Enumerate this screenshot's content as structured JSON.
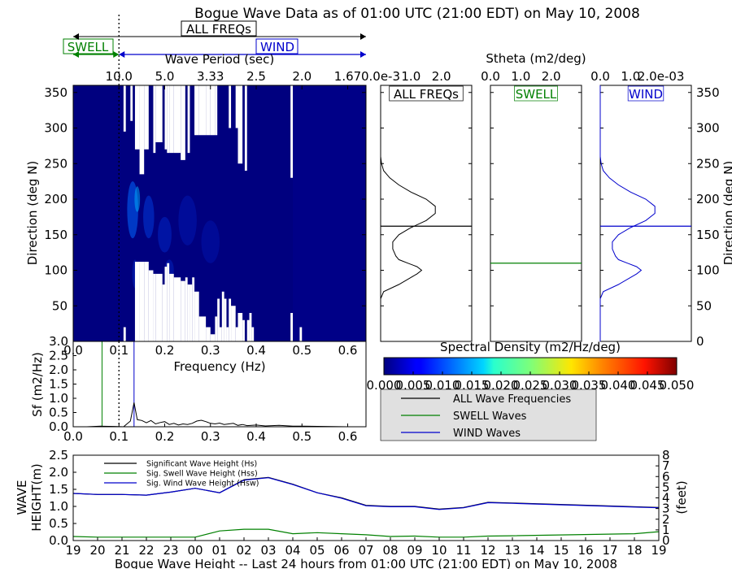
{
  "title": "Bogue Wave Data as of 01:00 UTC (21:00 EDT) on May 10, 2008",
  "band_labels": {
    "all": "ALL FREQs",
    "swell": "SWELL",
    "wind": "WIND"
  },
  "colors": {
    "swell": "#008000",
    "wind": "#0000cc",
    "all": "#000000",
    "heat_base": "#00007f",
    "panel_legend_bg": "#e0e0e0"
  },
  "chart_data": [
    {
      "id": "directional-spectrum",
      "type": "heatmap",
      "top_axis_label": "Wave Period (sec)",
      "top_ticks": [
        {
          "f": 0.1,
          "label": "10.0"
        },
        {
          "f": 0.2,
          "label": "5.0"
        },
        {
          "f": 0.3,
          "label": "3.33"
        },
        {
          "f": 0.4,
          "label": "2.5"
        },
        {
          "f": 0.5,
          "label": "2.0"
        },
        {
          "f": 0.6,
          "label": "1.67"
        }
      ],
      "ylabel": "Direction (deg N)",
      "xlim": [
        0.0,
        0.64
      ],
      "ylim": [
        0,
        360
      ],
      "yticks": [
        50,
        100,
        150,
        200,
        250,
        300,
        350
      ],
      "swell_wind_separation_hz": 0.1,
      "white_gaps": [
        {
          "x": [
            0.11,
            0.115
          ],
          "y": [
            0,
            20
          ]
        },
        {
          "x": [
            0.11,
            0.115
          ],
          "y": [
            295,
            360
          ]
        },
        {
          "x": [
            0.125,
            0.13
          ],
          "y": [
            310,
            360
          ]
        },
        {
          "x": [
            0.135,
            0.145
          ],
          "y": [
            270,
            360
          ]
        },
        {
          "x": [
            0.135,
            0.145
          ],
          "y": [
            0,
            112
          ]
        },
        {
          "x": [
            0.145,
            0.155
          ],
          "y": [
            235,
            360
          ]
        },
        {
          "x": [
            0.145,
            0.155
          ],
          "y": [
            0,
            112
          ]
        },
        {
          "x": [
            0.155,
            0.165
          ],
          "y": [
            270,
            360
          ]
        },
        {
          "x": [
            0.155,
            0.165
          ],
          "y": [
            0,
            112
          ]
        },
        {
          "x": [
            0.165,
            0.175
          ],
          "y": [
            0,
            100
          ]
        },
        {
          "x": [
            0.175,
            0.18
          ],
          "y": [
            265,
            360
          ]
        },
        {
          "x": [
            0.175,
            0.18
          ],
          "y": [
            0,
            95
          ]
        },
        {
          "x": [
            0.18,
            0.195
          ],
          "y": [
            280,
            360
          ]
        },
        {
          "x": [
            0.18,
            0.195
          ],
          "y": [
            0,
            95
          ]
        },
        {
          "x": [
            0.195,
            0.2
          ],
          "y": [
            0,
            80
          ]
        },
        {
          "x": [
            0.2,
            0.205
          ],
          "y": [
            270,
            360
          ]
        },
        {
          "x": [
            0.2,
            0.205
          ],
          "y": [
            0,
            105
          ]
        },
        {
          "x": [
            0.205,
            0.21
          ],
          "y": [
            265,
            360
          ]
        },
        {
          "x": [
            0.205,
            0.21
          ],
          "y": [
            0,
            110
          ]
        },
        {
          "x": [
            0.21,
            0.22
          ],
          "y": [
            265,
            360
          ]
        },
        {
          "x": [
            0.21,
            0.22
          ],
          "y": [
            0,
            95
          ]
        },
        {
          "x": [
            0.22,
            0.235
          ],
          "y": [
            265,
            360
          ]
        },
        {
          "x": [
            0.22,
            0.235
          ],
          "y": [
            0,
            90
          ]
        },
        {
          "x": [
            0.235,
            0.245
          ],
          "y": [
            255,
            360
          ]
        },
        {
          "x": [
            0.235,
            0.245
          ],
          "y": [
            0,
            85
          ]
        },
        {
          "x": [
            0.245,
            0.25
          ],
          "y": [
            0,
            90
          ]
        },
        {
          "x": [
            0.25,
            0.255
          ],
          "y": [
            265,
            360
          ]
        },
        {
          "x": [
            0.25,
            0.255
          ],
          "y": [
            0,
            80
          ]
        },
        {
          "x": [
            0.255,
            0.26
          ],
          "y": [
            0,
            80
          ]
        },
        {
          "x": [
            0.26,
            0.265
          ],
          "y": [
            0,
            90
          ]
        },
        {
          "x": [
            0.265,
            0.275
          ],
          "y": [
            290,
            360
          ]
        },
        {
          "x": [
            0.265,
            0.275
          ],
          "y": [
            0,
            70
          ]
        },
        {
          "x": [
            0.275,
            0.29
          ],
          "y": [
            290,
            360
          ]
        },
        {
          "x": [
            0.275,
            0.29
          ],
          "y": [
            0,
            35
          ]
        },
        {
          "x": [
            0.29,
            0.3
          ],
          "y": [
            290,
            360
          ]
        },
        {
          "x": [
            0.29,
            0.3
          ],
          "y": [
            0,
            20
          ]
        },
        {
          "x": [
            0.3,
            0.31
          ],
          "y": [
            290,
            360
          ]
        },
        {
          "x": [
            0.3,
            0.31
          ],
          "y": [
            0,
            10
          ]
        },
        {
          "x": [
            0.31,
            0.315
          ],
          "y": [
            290,
            360
          ]
        },
        {
          "x": [
            0.31,
            0.315
          ],
          "y": [
            0,
            35
          ]
        },
        {
          "x": [
            0.315,
            0.32
          ],
          "y": [
            0,
            60
          ]
        },
        {
          "x": [
            0.32,
            0.325
          ],
          "y": [
            0,
            20
          ]
        },
        {
          "x": [
            0.325,
            0.33
          ],
          "y": [
            0,
            70
          ]
        },
        {
          "x": [
            0.33,
            0.335
          ],
          "y": [
            0,
            60
          ]
        },
        {
          "x": [
            0.335,
            0.34
          ],
          "y": [
            0,
            20
          ]
        },
        {
          "x": [
            0.34,
            0.345
          ],
          "y": [
            300,
            360
          ]
        },
        {
          "x": [
            0.34,
            0.345
          ],
          "y": [
            0,
            60
          ]
        },
        {
          "x": [
            0.345,
            0.355
          ],
          "y": [
            0,
            50
          ]
        },
        {
          "x": [
            0.355,
            0.36
          ],
          "y": [
            300,
            360
          ]
        },
        {
          "x": [
            0.355,
            0.36
          ],
          "y": [
            0,
            20
          ]
        },
        {
          "x": [
            0.36,
            0.37
          ],
          "y": [
            250,
            360
          ]
        },
        {
          "x": [
            0.36,
            0.37
          ],
          "y": [
            0,
            40
          ]
        },
        {
          "x": [
            0.37,
            0.375
          ],
          "y": [
            0,
            30
          ]
        },
        {
          "x": [
            0.375,
            0.38
          ],
          "y": [
            240,
            360
          ]
        },
        {
          "x": [
            0.38,
            0.385
          ],
          "y": [
            0,
            30
          ]
        },
        {
          "x": [
            0.385,
            0.39
          ],
          "y": [
            0,
            40
          ]
        },
        {
          "x": [
            0.39,
            0.395
          ],
          "y": [
            0,
            20
          ]
        },
        {
          "x": [
            0.475,
            0.48
          ],
          "y": [
            230,
            360
          ]
        },
        {
          "x": [
            0.475,
            0.48
          ],
          "y": [
            0,
            40
          ]
        },
        {
          "x": [
            0.495,
            0.5
          ],
          "y": [
            0,
            20
          ]
        }
      ],
      "energy_blobs": [
        {
          "f": 0.13,
          "dir": 185,
          "rx": 0.012,
          "ry": 40,
          "color": "#0066ff",
          "opacity": 0.55
        },
        {
          "f": 0.14,
          "dir": 200,
          "rx": 0.006,
          "ry": 18,
          "color": "#00b4ff",
          "opacity": 0.5
        },
        {
          "f": 0.165,
          "dir": 175,
          "rx": 0.012,
          "ry": 30,
          "color": "#0044ee",
          "opacity": 0.45
        },
        {
          "f": 0.2,
          "dir": 150,
          "rx": 0.015,
          "ry": 25,
          "color": "#0033dd",
          "opacity": 0.4
        },
        {
          "f": 0.25,
          "dir": 170,
          "rx": 0.02,
          "ry": 35,
          "color": "#0022cc",
          "opacity": 0.35
        },
        {
          "f": 0.3,
          "dir": 140,
          "rx": 0.02,
          "ry": 30,
          "color": "#0022cc",
          "opacity": 0.3
        },
        {
          "f": 0.21,
          "dir": 100,
          "rx": 0.01,
          "ry": 15,
          "color": "#0033dd",
          "opacity": 0.35
        },
        {
          "f": 0.135,
          "dir": 95,
          "rx": 0.006,
          "ry": 20,
          "color": "#0033dd",
          "opacity": 0.35
        }
      ]
    },
    {
      "id": "freq-spectrum",
      "type": "line",
      "xlabel": "Frequency (Hz)",
      "ylabel": "Sf (m2/Hz)",
      "xlim": [
        0.0,
        0.64
      ],
      "ylim": [
        0.0,
        3.0
      ],
      "xticks": [
        0.0,
        0.1,
        0.2,
        0.3,
        0.4,
        0.5,
        0.6
      ],
      "yticks": [
        0.0,
        0.5,
        1.0,
        1.5,
        2.0,
        2.5,
        3.0
      ],
      "xtick_labels": [
        "0.0",
        "0.1",
        "0.2",
        "0.3",
        "0.4",
        "0.5",
        "0.6"
      ],
      "ytick_labels": [
        "0.0",
        "0.5",
        "1.0",
        "1.5",
        "2.0",
        "2.5",
        "3.0"
      ],
      "separation_hz": 0.1,
      "peak_swell_hz": 0.063,
      "peak_wind_hz": 0.133,
      "series": [
        {
          "name": "ALL Wave Frequencies",
          "x": [
            0.0,
            0.03,
            0.06,
            0.09,
            0.11,
            0.125,
            0.133,
            0.14,
            0.15,
            0.16,
            0.17,
            0.18,
            0.19,
            0.2,
            0.21,
            0.22,
            0.23,
            0.24,
            0.25,
            0.26,
            0.27,
            0.28,
            0.29,
            0.3,
            0.31,
            0.32,
            0.33,
            0.34,
            0.35,
            0.36,
            0.37,
            0.38,
            0.4,
            0.42,
            0.45,
            0.48,
            0.5,
            0.55,
            0.6
          ],
          "y": [
            0.0,
            0.0,
            0.02,
            0.01,
            0.0,
            0.2,
            0.85,
            0.25,
            0.22,
            0.14,
            0.22,
            0.1,
            0.15,
            0.18,
            0.08,
            0.12,
            0.06,
            0.1,
            0.08,
            0.12,
            0.2,
            0.23,
            0.18,
            0.12,
            0.1,
            0.13,
            0.08,
            0.1,
            0.12,
            0.05,
            0.08,
            0.04,
            0.06,
            0.03,
            0.05,
            0.02,
            0.02,
            0.01,
            0.0
          ]
        }
      ]
    },
    {
      "id": "all-freqs-directional",
      "type": "line",
      "label": "ALL FREQs",
      "top_ticks": [
        "0.0e-3",
        "1.0",
        "2.0"
      ],
      "ylim": [
        0,
        360
      ],
      "mean_direction": 162,
      "curve": {
        "dir": [
          0,
          60,
          70,
          80,
          90,
          95,
          100,
          105,
          110,
          115,
          120,
          130,
          140,
          150,
          160,
          170,
          180,
          190,
          200,
          210,
          220,
          230,
          240,
          250,
          260,
          360
        ],
        "value": [
          0.0,
          0.0,
          0.1,
          0.6,
          1.0,
          1.2,
          1.35,
          1.2,
          0.9,
          0.6,
          0.5,
          0.4,
          0.4,
          0.6,
          1.0,
          1.5,
          1.8,
          1.8,
          1.5,
          1.0,
          0.6,
          0.3,
          0.1,
          0.03,
          0.0,
          0.0
        ]
      }
    },
    {
      "id": "swell-directional",
      "type": "line",
      "label": "SWELL",
      "top_ticks": [
        "0.0",
        "1.0",
        "2.0"
      ],
      "ylim": [
        0,
        360
      ],
      "mean_direction": 110
    },
    {
      "id": "wind-directional",
      "type": "line",
      "label": "WIND",
      "top_ticks": [
        "0.0",
        "1.0",
        "2.0e-03"
      ],
      "ylabel": "Direction (deg N)",
      "ylim": [
        0,
        360
      ],
      "yticks": [
        0,
        50,
        100,
        150,
        200,
        250,
        300,
        350
      ],
      "mean_direction": 162,
      "curve": {
        "dir": [
          0,
          60,
          70,
          80,
          90,
          95,
          100,
          105,
          110,
          115,
          120,
          130,
          140,
          150,
          160,
          170,
          180,
          190,
          200,
          210,
          220,
          230,
          240,
          250,
          260,
          360
        ],
        "value": [
          0.0,
          0.0,
          0.1,
          0.6,
          1.0,
          1.2,
          1.35,
          1.2,
          0.9,
          0.6,
          0.5,
          0.4,
          0.4,
          0.6,
          1.0,
          1.5,
          1.8,
          1.8,
          1.5,
          1.0,
          0.6,
          0.3,
          0.1,
          0.03,
          0.0,
          0.0
        ]
      }
    },
    {
      "id": "colorbar",
      "type": "heatmap",
      "title": "Spectral Density (m2/Hz/deg)",
      "range": [
        0.0,
        0.05
      ],
      "tick_labels": [
        "0.000",
        "0.005",
        "0.010",
        "0.015",
        "0.020",
        "0.025",
        "0.030",
        "0.035",
        "0.040",
        "0.045",
        "0.050"
      ]
    },
    {
      "id": "wave-height-history",
      "type": "line",
      "xlabel": "Bogue Wave Height -- Last 24 hours from 01:00 UTC (21:00 EDT) on May 10, 2008",
      "ylabel": "WAVE HEIGHT(m)",
      "ylabel_right": "(feet)",
      "ylim": [
        0.0,
        2.5
      ],
      "ylim_right": [
        0,
        8
      ],
      "yticks": [
        0.0,
        0.5,
        1.0,
        1.5,
        2.0,
        2.5
      ],
      "ytick_labels": [
        "0.0",
        "0.5",
        "1.0",
        "1.5",
        "2.0",
        "2.5"
      ],
      "yticks_right": [
        0,
        1,
        2,
        3,
        4,
        5,
        6,
        7,
        8
      ],
      "hour_labels": [
        "19",
        "20",
        "21",
        "22",
        "23",
        "00",
        "01",
        "02",
        "03",
        "04",
        "05",
        "06",
        "07",
        "08",
        "09",
        "10",
        "11",
        "12",
        "13",
        "14",
        "15",
        "16",
        "17",
        "18",
        "19"
      ],
      "series": [
        {
          "name": "Significant Wave Height (Hs)",
          "color": "#000000",
          "values": [
            1.38,
            1.35,
            1.35,
            1.33,
            1.42,
            1.53,
            1.4,
            1.78,
            1.85,
            1.65,
            1.4,
            1.25,
            1.03,
            1.0,
            1.0,
            0.92,
            0.97,
            1.12,
            1.1,
            null,
            null,
            null,
            null,
            null,
            0.97
          ]
        },
        {
          "name": "Sig. Swell Wave Height (Hss)",
          "color": "#008000",
          "values": [
            0.12,
            0.1,
            0.1,
            0.1,
            0.1,
            0.1,
            0.28,
            0.33,
            0.33,
            0.2,
            0.23,
            0.2,
            0.17,
            0.12,
            0.13,
            0.1,
            0.1,
            0.13,
            0.14,
            null,
            null,
            null,
            null,
            0.2,
            0.26
          ]
        },
        {
          "name": "Sig. Wind Wave Height (Hsw)",
          "color": "#0000cc",
          "values": [
            1.38,
            1.35,
            1.35,
            1.33,
            1.42,
            1.53,
            1.4,
            1.77,
            1.84,
            1.64,
            1.4,
            1.24,
            1.02,
            0.99,
            0.99,
            0.91,
            0.96,
            1.11,
            1.09,
            null,
            null,
            null,
            null,
            null,
            0.96
          ]
        }
      ]
    }
  ],
  "legend": {
    "entries": [
      {
        "label": "ALL Wave Frequencies",
        "color": "#000000"
      },
      {
        "label": "SWELL Waves",
        "color": "#008000"
      },
      {
        "label": "WIND Waves",
        "color": "#0000cc"
      }
    ]
  }
}
